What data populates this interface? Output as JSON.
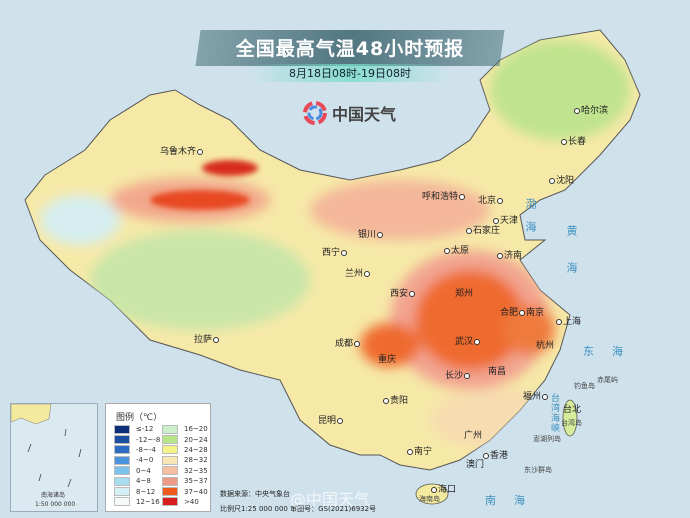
{
  "header": {
    "title": "全国最高气温48小时预报",
    "subtitle": "8月18日08时-19日08时"
  },
  "logo": {
    "text": "中国天气"
  },
  "cities": [
    {
      "name": "哈尔滨"
    },
    {
      "name": "长春"
    },
    {
      "name": "沈阳"
    },
    {
      "name": "乌鲁木齐"
    },
    {
      "name": "呼和浩特"
    },
    {
      "name": "北京"
    },
    {
      "name": "天津"
    },
    {
      "name": "石家庄"
    },
    {
      "name": "太原"
    },
    {
      "name": "济南"
    },
    {
      "name": "银川"
    },
    {
      "name": "兰州"
    },
    {
      "name": "西宁"
    },
    {
      "name": "西安"
    },
    {
      "name": "郑州"
    },
    {
      "name": "合肥"
    },
    {
      "name": "南京"
    },
    {
      "name": "上海"
    },
    {
      "name": "杭州"
    },
    {
      "name": "武汉"
    },
    {
      "name": "成都"
    },
    {
      "name": "重庆"
    },
    {
      "name": "长沙"
    },
    {
      "name": "南昌"
    },
    {
      "name": "贵阳"
    },
    {
      "name": "昆明"
    },
    {
      "name": "南宁"
    },
    {
      "name": "广州"
    },
    {
      "name": "香港"
    },
    {
      "name": "澳门"
    },
    {
      "name": "海口"
    },
    {
      "name": "福州"
    },
    {
      "name": "台北"
    },
    {
      "name": "拉萨"
    }
  ],
  "places": {
    "hainan": "海南岛",
    "taiwan": "台湾岛",
    "penghu": "澎湖列岛",
    "dongsha": "东沙群岛",
    "diaoyu": "钓鱼岛",
    "chiwei": "赤尾屿"
  },
  "seas": {
    "bohai": "渤海",
    "huanghai": "黄海",
    "donghai": "东海",
    "nanhai": "南海",
    "strait": "台湾海峡"
  },
  "inset": {
    "label": "南海诸岛",
    "scale": "1:50 000 000"
  },
  "legend": {
    "title": "图例（℃）",
    "items": [
      {
        "label": "≤-12",
        "color": "#0d2f7a"
      },
      {
        "label": "-12~-8",
        "color": "#1a4fa0"
      },
      {
        "label": "-8~-4",
        "color": "#2b6cc4"
      },
      {
        "label": "-4~0",
        "color": "#4a93dc"
      },
      {
        "label": "0~4",
        "color": "#7cc0ec"
      },
      {
        "label": "4~8",
        "color": "#a8dcef"
      },
      {
        "label": "8~12",
        "color": "#d2f0f6"
      },
      {
        "label": "12~16",
        "color": "#f4fbf8"
      },
      {
        "label": "16~20",
        "color": "#cdeecb"
      },
      {
        "label": "20~24",
        "color": "#b8e58a"
      },
      {
        "label": "24~28",
        "color": "#f4f38a"
      },
      {
        "label": "28~32",
        "color": "#f8e6b4"
      },
      {
        "label": "32~35",
        "color": "#f6c0a0"
      },
      {
        "label": "35~37",
        "color": "#ee9a88"
      },
      {
        "label": "37~40",
        "color": "#ee5a1c"
      },
      {
        "label": ">40",
        "color": "#d81e1e"
      }
    ]
  },
  "footer": {
    "source": "数据来源：中央气象台",
    "scale": "比例尺1:25 000 000  审图号：GS(2021)6932号"
  },
  "watermark": "@中国天气"
}
